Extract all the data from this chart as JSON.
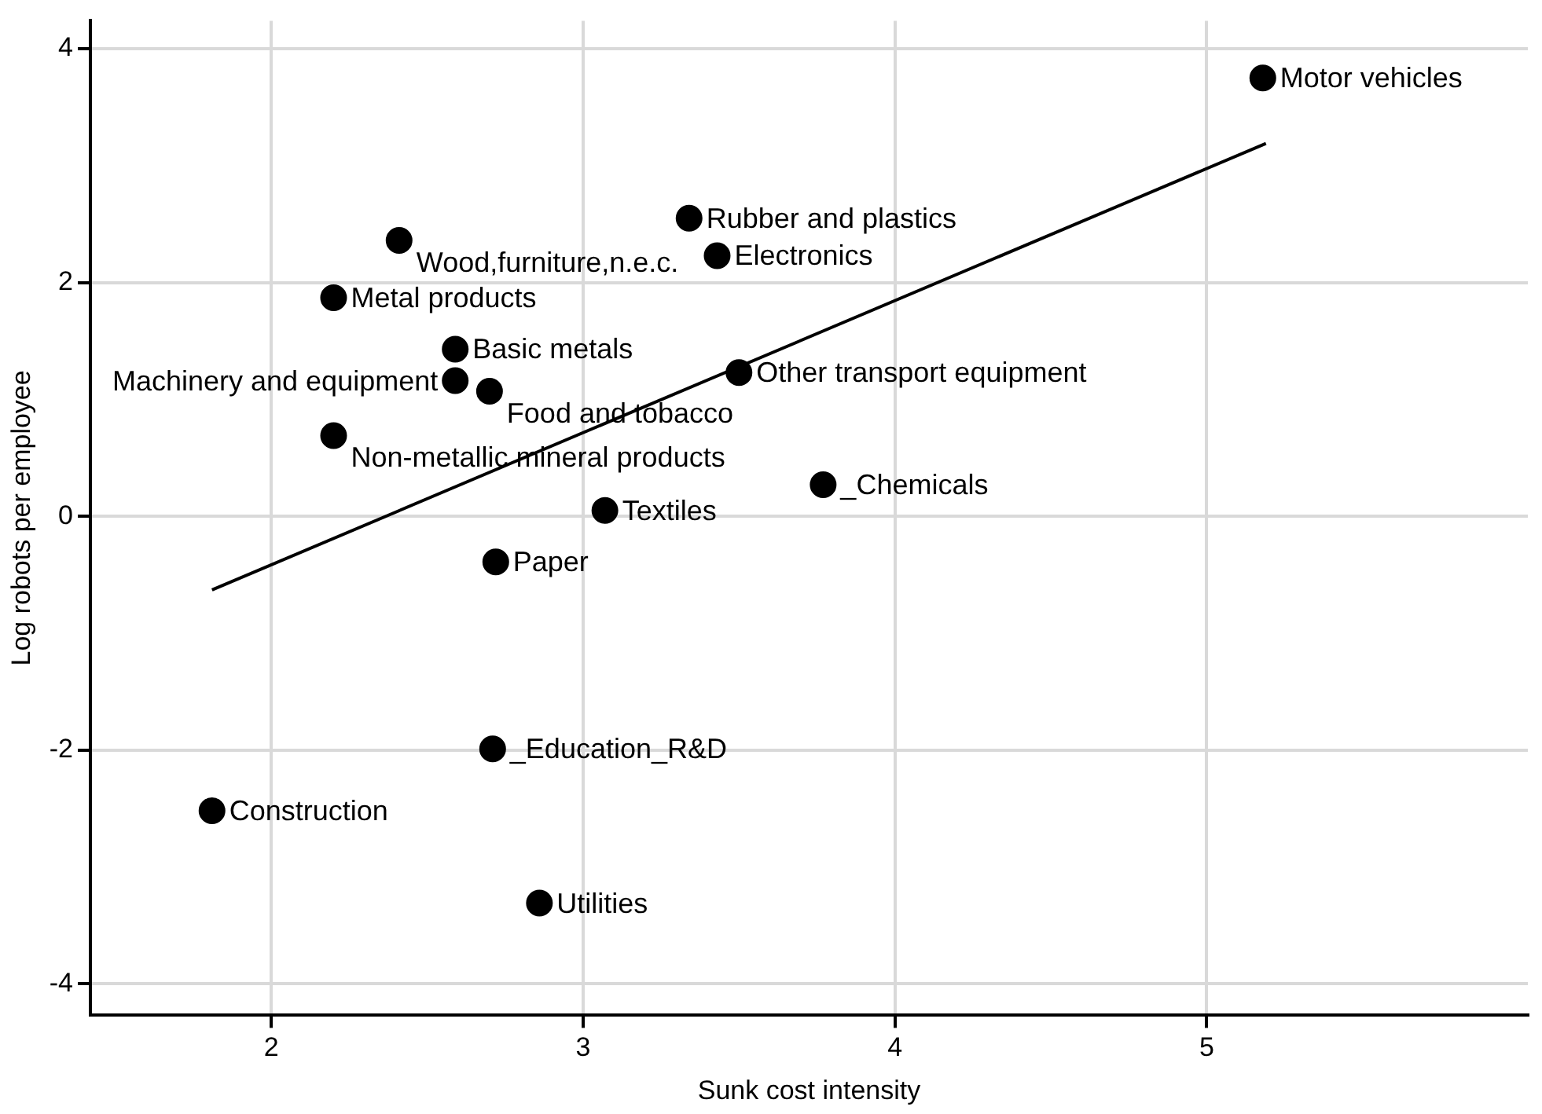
{
  "chart_data": {
    "type": "scatter",
    "xlabel": "Sunk cost intensity",
    "ylabel": "Log robots per employee",
    "xlim": [
      1.42,
      6.03
    ],
    "ylim": [
      -4.27,
      4.24
    ],
    "xticks": [
      2,
      3,
      4,
      5
    ],
    "yticks": [
      -4,
      -2,
      0,
      2,
      4
    ],
    "grid": true,
    "legend": false,
    "marker": "circle",
    "series": [
      {
        "color": "#000000",
        "x": [
          5.18,
          3.34,
          3.43,
          2.41,
          2.2,
          2.59,
          2.59,
          2.7,
          3.5,
          2.2,
          3.77,
          3.07,
          2.72,
          2.71,
          1.81,
          2.86
        ],
        "values": [
          3.75,
          2.55,
          2.23,
          2.36,
          1.87,
          1.43,
          1.16,
          1.07,
          1.23,
          0.69,
          0.27,
          0.05,
          -0.39,
          -1.99,
          -2.52,
          -3.31
        ],
        "value_labels": [
          "Motor vehicles",
          "Rubber and plastics",
          "Electronics",
          "Wood,furniture,n.e.c.",
          "Metal products",
          "Basic metals",
          "Machinery and equipment",
          "Food and tobacco",
          "Other transport equipment",
          "Non-metallic mineral products",
          "_Chemicals",
          "Textiles",
          "Paper",
          "_Education_R&D",
          "Construction",
          "Utilities"
        ]
      },
      {
        "type": "line",
        "color": "#000000",
        "x": [
          1.81,
          5.19
        ],
        "values": [
          -0.63,
          3.19
        ],
        "marker": "none",
        "line_style": "solid"
      }
    ]
  }
}
